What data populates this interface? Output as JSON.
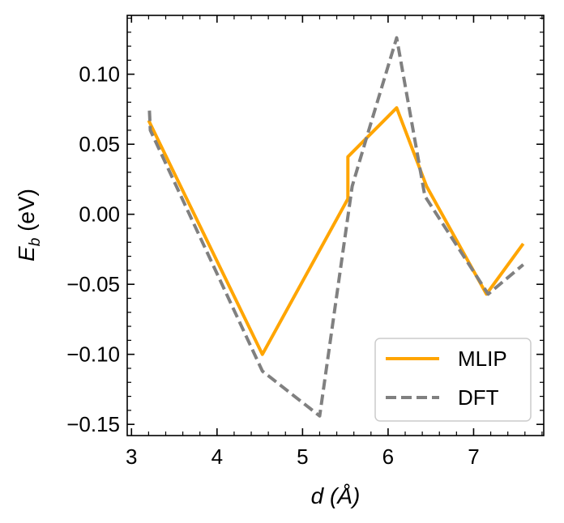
{
  "chart_data": {
    "type": "line",
    "xlabel": "d (Å)",
    "ylabel": "E_b (eV)",
    "xlim": [
      2.95,
      7.82
    ],
    "ylim": [
      -0.158,
      0.142
    ],
    "xticks": [
      3,
      4,
      5,
      6,
      7
    ],
    "xtick_labels": [
      "3",
      "4",
      "5",
      "6",
      "7"
    ],
    "yticks": [
      -0.15,
      -0.1,
      -0.05,
      0.0,
      0.05,
      0.1
    ],
    "ytick_labels": [
      "−0.15",
      "−0.10",
      "−0.05",
      "0.00",
      "0.05",
      "0.10"
    ],
    "legend_position": "bottom-right",
    "series": [
      {
        "name": "MLIP",
        "color": "#ffa500",
        "style": "solid",
        "x": [
          3.2,
          4.53,
          5.53,
          5.53,
          6.1,
          6.45,
          7.15,
          7.58
        ],
        "y": [
          0.067,
          -0.1,
          0.011,
          0.041,
          0.076,
          0.02,
          -0.057,
          -0.021
        ]
      },
      {
        "name": "DFT",
        "color": "#808080",
        "style": "dashed",
        "x": [
          3.21,
          3.22,
          4.53,
          5.2,
          5.58,
          5.75,
          6.1,
          6.43,
          7.17,
          7.58
        ],
        "y": [
          0.074,
          0.06,
          -0.112,
          -0.144,
          0.02,
          0.055,
          0.126,
          0.013,
          -0.057,
          -0.036
        ]
      }
    ]
  }
}
